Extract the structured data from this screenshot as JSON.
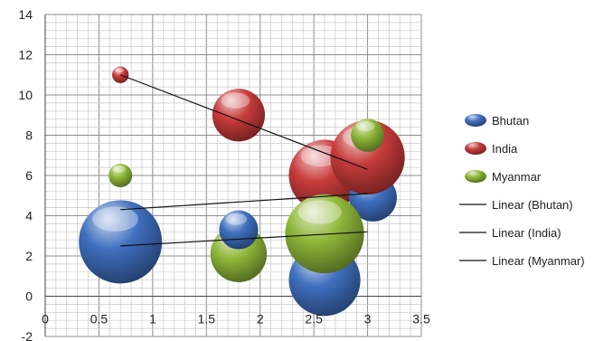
{
  "chart_data": {
    "type": "bubble",
    "xlim": [
      0,
      3.5
    ],
    "ylim": [
      -2,
      14
    ],
    "x_ticks": [
      "0",
      "0.5",
      "1",
      "1.5",
      "2",
      "2.5",
      "3",
      "3.5"
    ],
    "y_ticks": [
      "-2",
      "0",
      "2",
      "4",
      "6",
      "8",
      "10",
      "12",
      "14"
    ],
    "grid": true,
    "legend_position": "right",
    "series": [
      {
        "name": "Bhutan",
        "color": "#3f6fbf",
        "points": [
          {
            "x": 0.7,
            "y": 2.7,
            "size": 100
          },
          {
            "x": 1.8,
            "y": 3.3,
            "size": 22
          },
          {
            "x": 2.6,
            "y": 0.8,
            "size": 74
          },
          {
            "x": 3.05,
            "y": 4.9,
            "size": 33
          }
        ],
        "trendline": {
          "label": "Linear (Bhutan)",
          "from": [
            0.7,
            4.3
          ],
          "to": [
            3.0,
            5.1
          ]
        }
      },
      {
        "name": "India",
        "color": "#c83b3b",
        "points": [
          {
            "x": 0.7,
            "y": 11.0,
            "size": 4
          },
          {
            "x": 1.8,
            "y": 9.0,
            "size": 40
          },
          {
            "x": 2.6,
            "y": 6.0,
            "size": 74
          },
          {
            "x": 3.0,
            "y": 6.9,
            "size": 80
          }
        ],
        "trendline": {
          "label": "Linear (India)",
          "from": [
            0.7,
            11.0
          ],
          "to": [
            3.0,
            6.3
          ]
        }
      },
      {
        "name": "Myanmar",
        "color": "#8fb83a",
        "points": [
          {
            "x": 0.7,
            "y": 6.0,
            "size": 8
          },
          {
            "x": 1.8,
            "y": 2.1,
            "size": 46
          },
          {
            "x": 2.6,
            "y": 3.1,
            "size": 90
          },
          {
            "x": 3.0,
            "y": 8.0,
            "size": 16
          }
        ],
        "trendline": {
          "label": "Linear (Myanmar)",
          "from": [
            0.7,
            2.5
          ],
          "to": [
            3.0,
            3.2
          ]
        }
      }
    ]
  }
}
